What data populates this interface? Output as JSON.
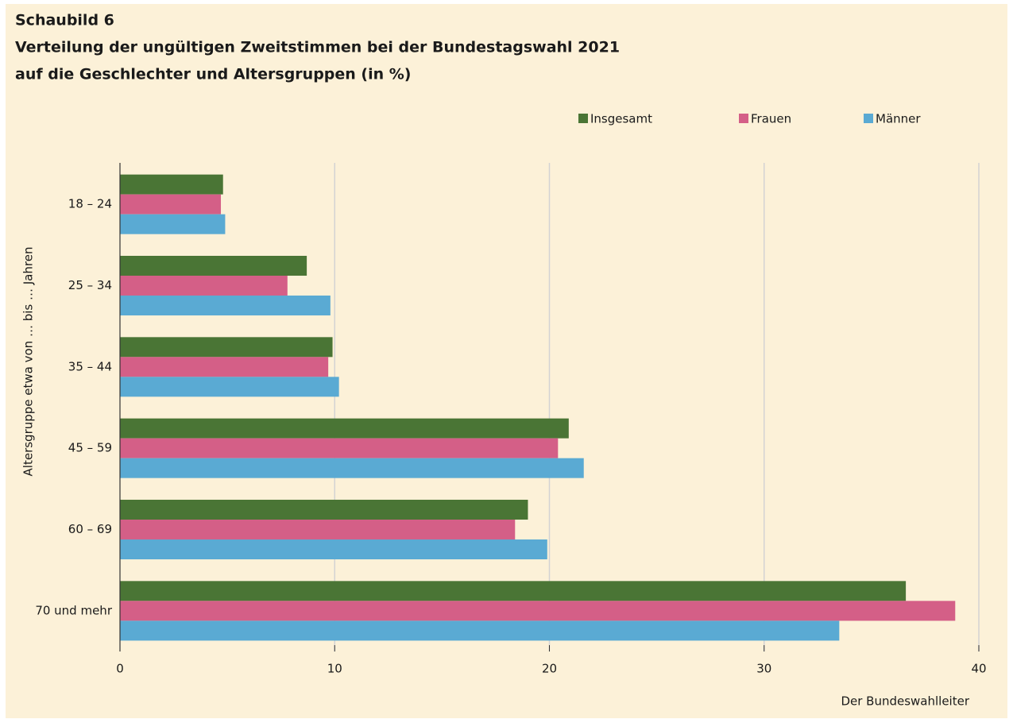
{
  "chart_data": {
    "type": "hbar",
    "label": "Schaubild 6",
    "title": [
      "Verteilung der ungültigen Zweitstimmen bei der Bundestagswahl 2021",
      "auf die Geschlechter und Altersgruppen (in %)"
    ],
    "ylabel": "Altersgruppe etwa von … bis … Jahren",
    "source": "Der Bundeswahlleiter",
    "categories": [
      "18 – 24",
      "25 – 34",
      "35 – 44",
      "45 – 59",
      "60 – 69",
      "70 und mehr"
    ],
    "series": [
      {
        "name": "Insgesamt",
        "color": "#4a7535",
        "values": [
          4.8,
          8.7,
          9.9,
          20.9,
          19.0,
          36.6
        ]
      },
      {
        "name": "Frauen",
        "color": "#d45f87",
        "values": [
          4.7,
          7.8,
          9.7,
          20.4,
          18.4,
          38.9
        ]
      },
      {
        "name": "Männer",
        "color": "#5aaad3",
        "values": [
          4.9,
          9.8,
          10.2,
          21.6,
          19.9,
          33.5
        ]
      }
    ],
    "xlim": [
      0,
      40
    ],
    "xticks": [
      0,
      10,
      20,
      30,
      40
    ],
    "grid": true,
    "legend": "top-right"
  }
}
